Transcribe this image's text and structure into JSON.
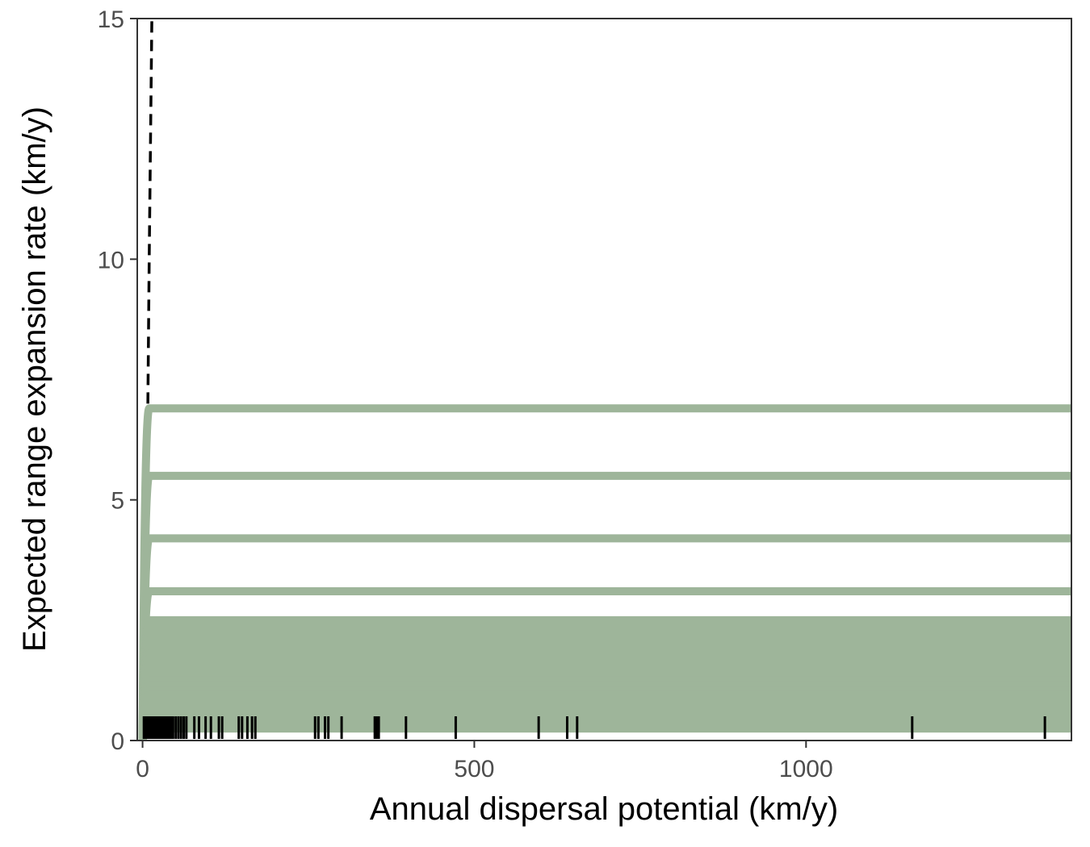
{
  "chart_data": {
    "type": "line",
    "title": "",
    "xlabel": "Annual dispersal potential (km/y)",
    "ylabel": "Expected range expansion rate (km/y)",
    "xlim": [
      -8,
      1400
    ],
    "ylim": [
      0,
      15
    ],
    "x_ticks": [
      0,
      500,
      1000
    ],
    "x_tick_labels": [
      "0",
      "500",
      "1000"
    ],
    "y_ticks": [
      0,
      5,
      10,
      15
    ],
    "y_tick_labels": [
      "0",
      "5",
      "10",
      "15"
    ],
    "grid": false,
    "legend": "none",
    "colors": {
      "curves": "#9eb59a",
      "reference_line": "#000000",
      "rug": "#000000",
      "panel_border": "#333333"
    },
    "reference_line": {
      "style": "dashed",
      "points": [
        [
          8,
          7.0
        ],
        [
          10,
          10.0
        ],
        [
          12,
          12.5
        ],
        [
          14,
          15.0
        ]
      ]
    },
    "curve_plateaus": [
      6.9,
      5.5,
      4.2,
      3.1,
      2.5,
      2.45,
      2.4,
      2.3,
      2.2,
      2.1,
      2.0,
      1.9,
      1.8,
      1.7,
      1.55,
      1.45,
      1.35,
      1.25,
      1.15,
      1.05,
      0.95,
      0.85,
      0.75,
      0.65,
      0.55,
      0.45,
      0.35,
      0.25
    ],
    "curve_rise_end_x": 10,
    "curve_x_end": 1400,
    "rug_x": [
      2,
      4,
      6,
      8,
      10,
      12,
      14,
      16,
      18,
      20,
      22,
      25,
      28,
      31,
      34,
      37,
      40,
      43,
      46,
      50,
      54,
      58,
      62,
      66,
      78,
      85,
      95,
      103,
      115,
      120,
      145,
      150,
      158,
      165,
      170,
      260,
      265,
      275,
      280,
      300,
      350,
      353,
      356,
      397,
      472,
      597,
      640,
      655,
      1160,
      1360
    ]
  }
}
